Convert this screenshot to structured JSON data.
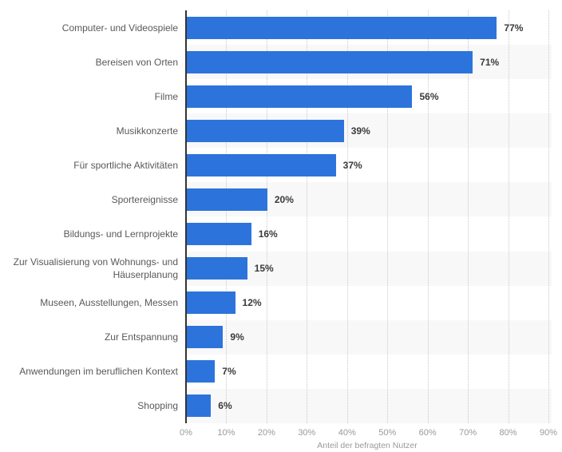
{
  "chart_data": {
    "type": "bar",
    "orientation": "horizontal",
    "title": "",
    "xlabel": "Anteil der befragten Nutzer",
    "ylabel": "",
    "categories": [
      "Computer- und Videospiele",
      "Bereisen von Orten",
      "Filme",
      "Musikkonzerte",
      "Für sportliche Aktivitäten",
      "Sportereignisse",
      "Bildungs- und Lernprojekte",
      "Zur Visualisierung von Wohnungs- und Häuserplanung",
      "Museen, Ausstellungen, Messen",
      "Zur Entspannung",
      "Anwendungen im beruflichen Kontext",
      "Shopping"
    ],
    "values": [
      77,
      71,
      56,
      39,
      37,
      20,
      16,
      15,
      12,
      9,
      7,
      6
    ],
    "value_labels": [
      "77%",
      "71%",
      "56%",
      "39%",
      "37%",
      "20%",
      "16%",
      "15%",
      "12%",
      "9%",
      "7%",
      "6%"
    ],
    "x_ticks": [
      "0%",
      "10%",
      "20%",
      "30%",
      "40%",
      "50%",
      "60%",
      "70%",
      "80%",
      "90%"
    ],
    "xlim": [
      0,
      90
    ],
    "grid": "vertical-dotted",
    "legend": "none",
    "colors": {
      "bar": "#2c74db",
      "row_stripe": "#f8f8f8",
      "gridline": "#c9c9c9",
      "axis_line": "#333333",
      "category_label": "#595959",
      "value_label": "#3a3a3a",
      "tick_label": "#9a9a9a",
      "axis_title": "#9a9a9a",
      "background": "#ffffff"
    }
  }
}
